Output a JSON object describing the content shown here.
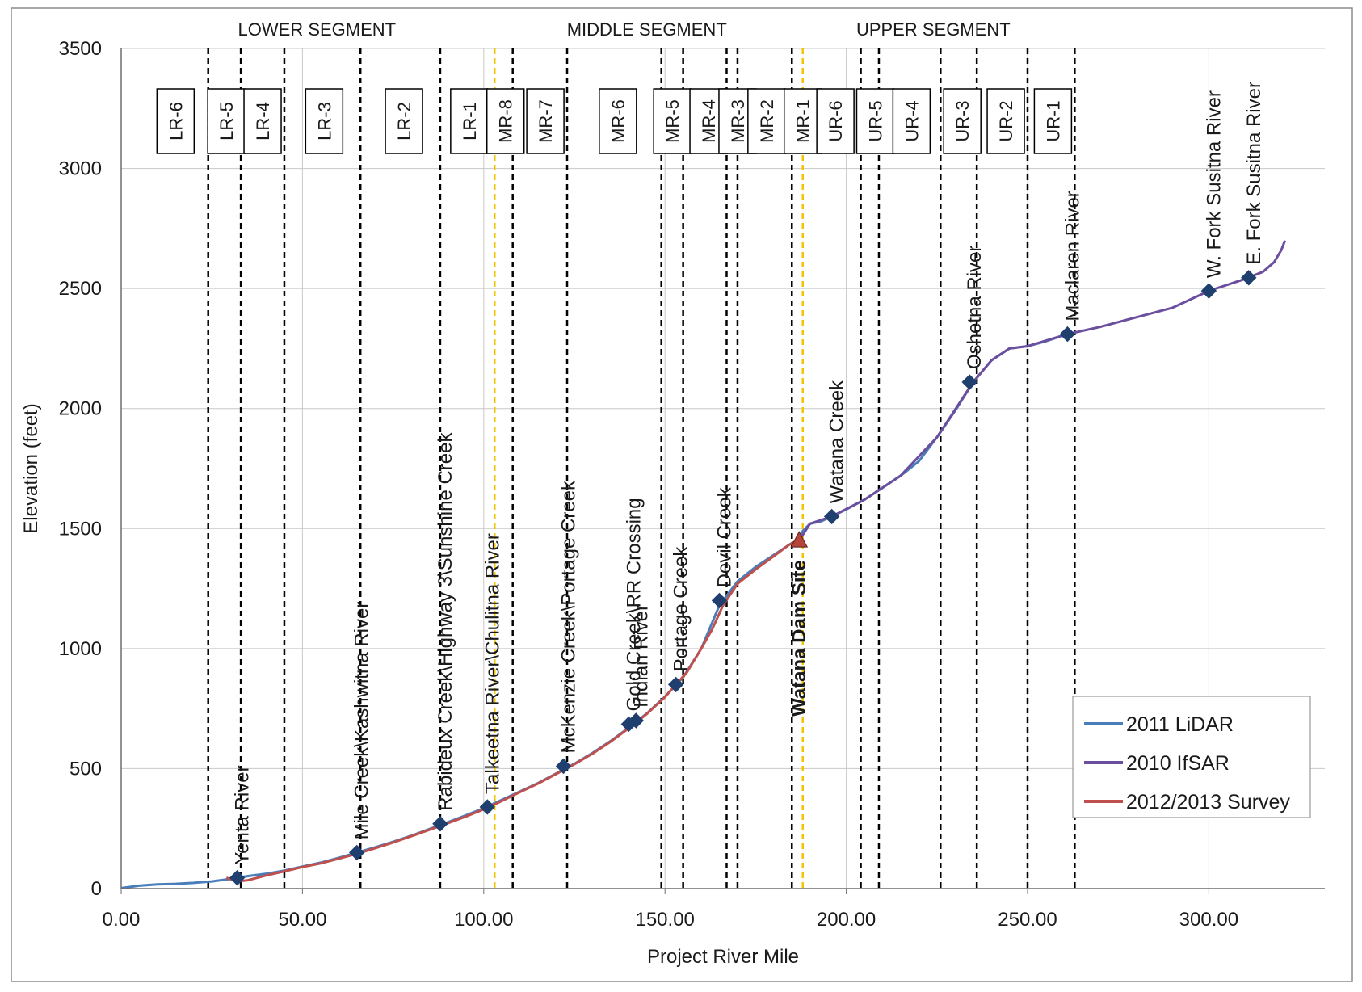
{
  "chart_data": {
    "type": "line",
    "title": "",
    "xlabel": "Project River Mile",
    "ylabel": "Elevation (feet)",
    "xlim": [
      0,
      332
    ],
    "ylim": [
      0,
      3500
    ],
    "x_ticks": [
      0,
      50,
      100,
      150,
      200,
      250,
      300
    ],
    "x_tick_labels": [
      "0.00",
      "50.00",
      "100.00",
      "150.00",
      "200.00",
      "250.00",
      "300.00"
    ],
    "y_ticks": [
      0,
      500,
      1000,
      1500,
      2000,
      2500,
      3000,
      3500
    ],
    "y_tick_labels": [
      "0",
      "500",
      "1000",
      "1500",
      "2000",
      "2500",
      "3000",
      "3500"
    ],
    "grid": true,
    "legend_position": "bottom-right",
    "series": [
      {
        "name": "2011 LiDAR",
        "color": "#4a7ebb",
        "points": [
          [
            0,
            2
          ],
          [
            5,
            12
          ],
          [
            10,
            18
          ],
          [
            15,
            20
          ],
          [
            20,
            24
          ],
          [
            25,
            30
          ],
          [
            30,
            40
          ],
          [
            35,
            52
          ],
          [
            40,
            62
          ],
          [
            45,
            75
          ],
          [
            50,
            92
          ],
          [
            55,
            108
          ],
          [
            60,
            128
          ],
          [
            65,
            150
          ],
          [
            70,
            172
          ],
          [
            75,
            195
          ],
          [
            80,
            220
          ],
          [
            85,
            248
          ],
          [
            90,
            276
          ],
          [
            95,
            305
          ],
          [
            100,
            335
          ],
          [
            105,
            370
          ],
          [
            110,
            405
          ],
          [
            115,
            440
          ],
          [
            120,
            480
          ],
          [
            125,
            520
          ],
          [
            130,
            565
          ],
          [
            135,
            615
          ],
          [
            140,
            670
          ],
          [
            145,
            730
          ],
          [
            150,
            800
          ],
          [
            155,
            880
          ],
          [
            160,
            1000
          ],
          [
            165,
            1180
          ],
          [
            170,
            1280
          ],
          [
            175,
            1340
          ],
          [
            180,
            1390
          ],
          [
            185,
            1440
          ],
          [
            187,
            1450
          ],
          [
            188,
            1490
          ],
          [
            190,
            1520
          ],
          [
            193,
            1530
          ],
          [
            196,
            1550
          ],
          [
            200,
            1580
          ],
          [
            205,
            1620
          ],
          [
            210,
            1670
          ],
          [
            215,
            1720
          ],
          [
            220,
            1780
          ],
          [
            225,
            1880
          ],
          [
            230,
            1990
          ],
          [
            235,
            2110
          ],
          [
            240,
            2200
          ],
          [
            245,
            2250
          ],
          [
            250,
            2260
          ],
          [
            255,
            2280
          ],
          [
            261,
            2310
          ]
        ]
      },
      {
        "name": "2010 IfSAR",
        "color": "#6b4f9e",
        "points": [
          [
            187,
            1450
          ],
          [
            190,
            1520
          ],
          [
            196,
            1550
          ],
          [
            205,
            1620
          ],
          [
            215,
            1720
          ],
          [
            225,
            1880
          ],
          [
            235,
            2110
          ],
          [
            240,
            2200
          ],
          [
            245,
            2250
          ],
          [
            250,
            2260
          ],
          [
            261,
            2310
          ],
          [
            270,
            2340
          ],
          [
            280,
            2380
          ],
          [
            290,
            2420
          ],
          [
            300,
            2490
          ],
          [
            310,
            2540
          ],
          [
            315,
            2570
          ],
          [
            318,
            2610
          ],
          [
            320,
            2660
          ],
          [
            321,
            2700
          ]
        ]
      },
      {
        "name": "2012/2013 Survey",
        "color": "#c0504d",
        "points": [
          [
            29,
            45
          ],
          [
            32,
            30
          ],
          [
            35,
            35
          ],
          [
            40,
            55
          ],
          [
            45,
            72
          ],
          [
            50,
            90
          ],
          [
            55,
            105
          ],
          [
            60,
            125
          ],
          [
            65,
            145
          ],
          [
            70,
            168
          ],
          [
            75,
            192
          ],
          [
            80,
            218
          ],
          [
            85,
            245
          ],
          [
            90,
            272
          ],
          [
            95,
            300
          ],
          [
            100,
            330
          ],
          [
            105,
            365
          ],
          [
            110,
            402
          ],
          [
            115,
            438
          ],
          [
            120,
            478
          ],
          [
            125,
            518
          ],
          [
            130,
            562
          ],
          [
            135,
            612
          ],
          [
            140,
            668
          ],
          [
            145,
            728
          ],
          [
            150,
            798
          ],
          [
            153,
            850
          ],
          [
            156,
            900
          ],
          [
            160,
            1000
          ],
          [
            163,
            1080
          ],
          [
            166,
            1180
          ],
          [
            170,
            1270
          ],
          [
            175,
            1330
          ],
          [
            180,
            1385
          ],
          [
            184,
            1430
          ],
          [
            187,
            1455
          ]
        ]
      }
    ],
    "markers": [
      {
        "x": 32,
        "y": 45,
        "label": "Yenta River"
      },
      {
        "x": 65,
        "y": 150,
        "label": "Mile Creek\\Kashwitna River"
      },
      {
        "x": 88,
        "y": 270,
        "label": "Rabideux Creek\\Highway 3\\Sunshine Creek"
      },
      {
        "x": 101,
        "y": 340,
        "label": "Talkeetna River\\Chulitna River"
      },
      {
        "x": 122,
        "y": 510,
        "label": "McKenzie Creek\\Portage Creek"
      },
      {
        "x": 140,
        "y": 685,
        "label": "Gold Creek\\RR Crossing"
      },
      {
        "x": 142,
        "y": 700,
        "label": "Indian River"
      },
      {
        "x": 153,
        "y": 850,
        "label": "Portage Creek"
      },
      {
        "x": 165,
        "y": 1200,
        "label": "Devil Creek"
      },
      {
        "x": 196,
        "y": 1550,
        "label": "Watana Creek"
      },
      {
        "x": 234,
        "y": 2110,
        "label": "Oshetna River"
      },
      {
        "x": 261,
        "y": 2310,
        "label": "Maclaren River"
      },
      {
        "x": 300,
        "y": 2490,
        "label": "W. Fork Susitna River"
      },
      {
        "x": 311,
        "y": 2545,
        "label": "E. Fork Susitna River"
      }
    ],
    "dam_site": {
      "x": 187,
      "y": 1450,
      "label": "Watana Dam Site",
      "color": "#c0504d",
      "marker_color": "#b5443a"
    },
    "segment_boundaries_black": [
      24,
      33,
      45,
      66,
      88,
      108,
      123,
      149,
      155,
      167,
      170,
      185,
      204,
      209,
      226,
      236,
      250,
      263
    ],
    "segment_boundaries_yellow": [
      103,
      188
    ],
    "segment_labels": [
      {
        "label": "LOWER SEGMENT",
        "x": 54
      },
      {
        "label": "MIDDLE SEGMENT",
        "x": 145
      },
      {
        "label": "UPPER SEGMENT",
        "x": 224
      }
    ],
    "reach_labels": [
      {
        "label": "LR-6",
        "x": 15
      },
      {
        "label": "LR-5",
        "x": 29
      },
      {
        "label": "LR-4",
        "x": 39
      },
      {
        "label": "LR-3",
        "x": 56
      },
      {
        "label": "LR-2",
        "x": 78
      },
      {
        "label": "LR-1",
        "x": 96
      },
      {
        "label": "MR-8",
        "x": 106
      },
      {
        "label": "MR-7",
        "x": 117
      },
      {
        "label": "MR-6",
        "x": 137
      },
      {
        "label": "MR-5",
        "x": 152
      },
      {
        "label": "MR-4",
        "x": 162
      },
      {
        "label": "MR-3",
        "x": 170
      },
      {
        "label": "MR-2",
        "x": 178
      },
      {
        "label": "MR-1",
        "x": 188
      },
      {
        "label": "UR-6",
        "x": 197
      },
      {
        "label": "UR-5",
        "x": 208
      },
      {
        "label": "UR-4",
        "x": 218
      },
      {
        "label": "UR-3",
        "x": 232
      },
      {
        "label": "UR-2",
        "x": 244
      },
      {
        "label": "UR-1",
        "x": 257
      }
    ]
  }
}
